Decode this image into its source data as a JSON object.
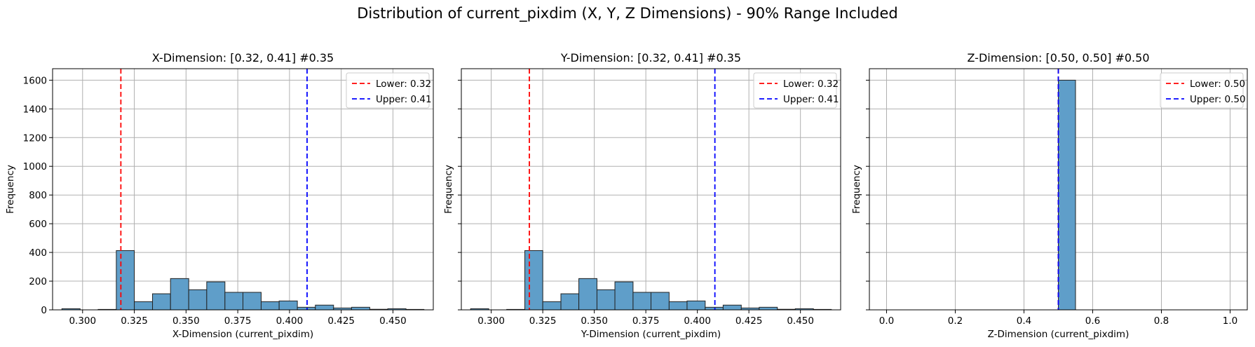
{
  "figure": {
    "suptitle": "Distribution of current_pixdim (X, Y, Z Dimensions) - 90% Range Included"
  },
  "colors": {
    "bar_fill": "#5f9ec9",
    "bar_edge": "#222222",
    "grid": "#b0b0b0",
    "lower_line": "#ff0000",
    "upper_line": "#0000ff"
  },
  "chart_data": [
    {
      "type": "bar",
      "title": "X-Dimension: [0.32, 0.41] #0.35",
      "xlabel": "X-Dimension (current_pixdim)",
      "ylabel": "Frequency",
      "xlim": [
        0.2855,
        0.4695
      ],
      "ylim": [
        0,
        1680
      ],
      "xticks": [
        0.3,
        0.325,
        0.35,
        0.375,
        0.4,
        0.425,
        0.45
      ],
      "xtick_labels": [
        "0.300",
        "0.325",
        "0.350",
        "0.375",
        "0.400",
        "0.425",
        "0.450"
      ],
      "yticks": [
        0,
        200,
        400,
        600,
        800,
        1000,
        1200,
        1400,
        1600
      ],
      "ytick_labels": [
        "0",
        "200",
        "400",
        "600",
        "800",
        "1000",
        "1200",
        "1400",
        "1600"
      ],
      "show_yticklabels": true,
      "grid": true,
      "legend_position": "top-right",
      "bins": [
        {
          "x0": 0.29,
          "x1": 0.2988,
          "value": 8
        },
        {
          "x0": 0.2988,
          "x1": 0.3075,
          "value": 0
        },
        {
          "x0": 0.3075,
          "x1": 0.3163,
          "value": 3
        },
        {
          "x0": 0.3163,
          "x1": 0.325,
          "value": 413
        },
        {
          "x0": 0.325,
          "x1": 0.3338,
          "value": 57
        },
        {
          "x0": 0.3338,
          "x1": 0.3425,
          "value": 112
        },
        {
          "x0": 0.3425,
          "x1": 0.3513,
          "value": 218
        },
        {
          "x0": 0.3513,
          "x1": 0.36,
          "value": 140
        },
        {
          "x0": 0.36,
          "x1": 0.3688,
          "value": 195
        },
        {
          "x0": 0.3688,
          "x1": 0.3775,
          "value": 122
        },
        {
          "x0": 0.3775,
          "x1": 0.3863,
          "value": 122
        },
        {
          "x0": 0.3863,
          "x1": 0.395,
          "value": 57
        },
        {
          "x0": 0.395,
          "x1": 0.4038,
          "value": 62
        },
        {
          "x0": 0.4038,
          "x1": 0.4125,
          "value": 18
        },
        {
          "x0": 0.4125,
          "x1": 0.4213,
          "value": 33
        },
        {
          "x0": 0.4213,
          "x1": 0.43,
          "value": 13
        },
        {
          "x0": 0.43,
          "x1": 0.4388,
          "value": 18
        },
        {
          "x0": 0.4388,
          "x1": 0.4475,
          "value": 4
        },
        {
          "x0": 0.4475,
          "x1": 0.4563,
          "value": 8
        },
        {
          "x0": 0.4563,
          "x1": 0.465,
          "value": 3
        }
      ],
      "vlines": [
        {
          "label": "Lower: 0.32",
          "x": 0.3185,
          "color": "#ff0000"
        },
        {
          "label": "Upper: 0.41",
          "x": 0.4085,
          "color": "#0000ff"
        }
      ]
    },
    {
      "type": "bar",
      "title": "Y-Dimension: [0.32, 0.41] #0.35",
      "xlabel": "Y-Dimension (current_pixdim)",
      "ylabel": "Frequency",
      "xlim": [
        0.2855,
        0.4695
      ],
      "ylim": [
        0,
        1680
      ],
      "xticks": [
        0.3,
        0.325,
        0.35,
        0.375,
        0.4,
        0.425,
        0.45
      ],
      "xtick_labels": [
        "0.300",
        "0.325",
        "0.350",
        "0.375",
        "0.400",
        "0.425",
        "0.450"
      ],
      "yticks": [
        0,
        200,
        400,
        600,
        800,
        1000,
        1200,
        1400,
        1600
      ],
      "ytick_labels": [
        "0",
        "200",
        "400",
        "600",
        "800",
        "1000",
        "1200",
        "1400",
        "1600"
      ],
      "show_yticklabels": false,
      "grid": true,
      "legend_position": "top-right",
      "bins": [
        {
          "x0": 0.29,
          "x1": 0.2988,
          "value": 8
        },
        {
          "x0": 0.2988,
          "x1": 0.3075,
          "value": 0
        },
        {
          "x0": 0.3075,
          "x1": 0.3163,
          "value": 3
        },
        {
          "x0": 0.3163,
          "x1": 0.325,
          "value": 413
        },
        {
          "x0": 0.325,
          "x1": 0.3338,
          "value": 57
        },
        {
          "x0": 0.3338,
          "x1": 0.3425,
          "value": 112
        },
        {
          "x0": 0.3425,
          "x1": 0.3513,
          "value": 218
        },
        {
          "x0": 0.3513,
          "x1": 0.36,
          "value": 140
        },
        {
          "x0": 0.36,
          "x1": 0.3688,
          "value": 195
        },
        {
          "x0": 0.3688,
          "x1": 0.3775,
          "value": 122
        },
        {
          "x0": 0.3775,
          "x1": 0.3863,
          "value": 122
        },
        {
          "x0": 0.3863,
          "x1": 0.395,
          "value": 57
        },
        {
          "x0": 0.395,
          "x1": 0.4038,
          "value": 62
        },
        {
          "x0": 0.4038,
          "x1": 0.4125,
          "value": 18
        },
        {
          "x0": 0.4125,
          "x1": 0.4213,
          "value": 33
        },
        {
          "x0": 0.4213,
          "x1": 0.43,
          "value": 13
        },
        {
          "x0": 0.43,
          "x1": 0.4388,
          "value": 18
        },
        {
          "x0": 0.4388,
          "x1": 0.4475,
          "value": 4
        },
        {
          "x0": 0.4475,
          "x1": 0.4563,
          "value": 8
        },
        {
          "x0": 0.4563,
          "x1": 0.465,
          "value": 3
        }
      ],
      "vlines": [
        {
          "label": "Lower: 0.32",
          "x": 0.3185,
          "color": "#ff0000"
        },
        {
          "label": "Upper: 0.41",
          "x": 0.4085,
          "color": "#0000ff"
        }
      ]
    },
    {
      "type": "bar",
      "title": "Z-Dimension: [0.50, 0.50] #0.50",
      "xlabel": "Z-Dimension (current_pixdim)",
      "ylabel": "Frequency",
      "xlim": [
        -0.05,
        1.05
      ],
      "ylim": [
        0,
        1680
      ],
      "xticks": [
        0.0,
        0.2,
        0.4,
        0.6,
        0.8,
        1.0
      ],
      "xtick_labels": [
        "0.0",
        "0.2",
        "0.4",
        "0.6",
        "0.8",
        "1.0"
      ],
      "yticks": [
        0,
        200,
        400,
        600,
        800,
        1000,
        1200,
        1400,
        1600
      ],
      "ytick_labels": [
        "0",
        "200",
        "400",
        "600",
        "800",
        "1000",
        "1200",
        "1400",
        "1600"
      ],
      "show_yticklabels": false,
      "grid": true,
      "legend_position": "top-right",
      "bins": [
        {
          "x0": 0.5,
          "x1": 0.55,
          "value": 1600
        }
      ],
      "vlines": [
        {
          "label": "Lower: 0.50",
          "x": 0.5,
          "color": "#ff0000"
        },
        {
          "label": "Upper: 0.50",
          "x": 0.5,
          "color": "#0000ff"
        }
      ]
    }
  ]
}
